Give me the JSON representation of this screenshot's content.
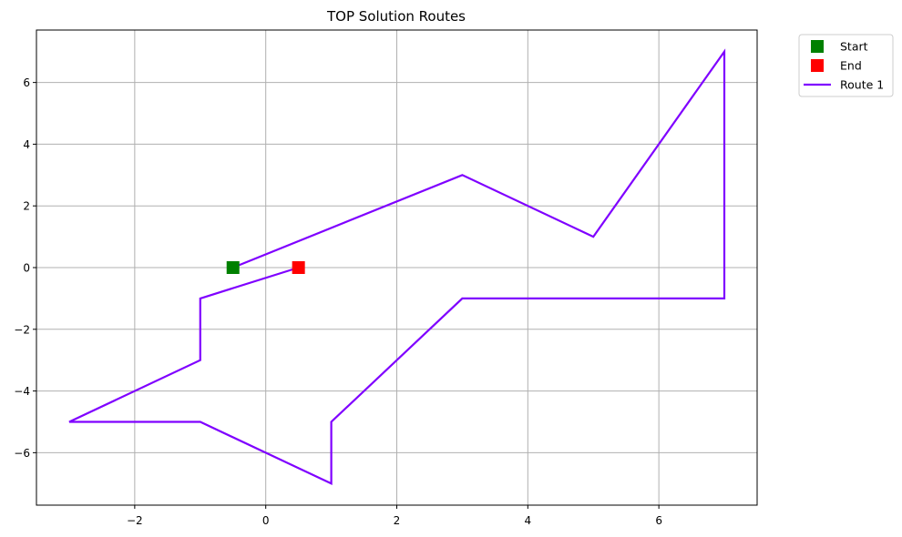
{
  "chart_data": {
    "type": "line",
    "title": "TOP Solution Routes",
    "xlabel": "",
    "ylabel": "",
    "xlim": [
      -3.5,
      7.5
    ],
    "ylim": [
      -7.7,
      7.7
    ],
    "xticks": [
      -2,
      0,
      2,
      4,
      6
    ],
    "yticks": [
      -6,
      -4,
      -2,
      0,
      2,
      4,
      6
    ],
    "xtick_labels": [
      "−2",
      "0",
      "2",
      "4",
      "6"
    ],
    "ytick_labels": [
      "−6",
      "−4",
      "−2",
      "0",
      "2",
      "4",
      "6"
    ],
    "grid": true,
    "legend_position": "outside-top-right",
    "series": [
      {
        "name": "Route 1",
        "kind": "line",
        "color": "#7f00ff",
        "points": [
          [
            -0.5,
            0
          ],
          [
            3,
            3
          ],
          [
            5,
            1
          ],
          [
            7,
            7
          ],
          [
            7,
            -1
          ],
          [
            3,
            -1
          ],
          [
            1,
            -5
          ],
          [
            1,
            -7
          ],
          [
            -1,
            -5
          ],
          [
            -3,
            -5
          ],
          [
            -1,
            -3
          ],
          [
            -1,
            -1
          ],
          [
            0.5,
            0
          ]
        ]
      }
    ],
    "markers": [
      {
        "name": "Start",
        "kind": "square",
        "color": "#008000",
        "x": -0.5,
        "y": 0
      },
      {
        "name": "End",
        "kind": "square",
        "color": "#ff0000",
        "x": 0.5,
        "y": 0
      }
    ],
    "legend": [
      {
        "label": "Start",
        "kind": "square",
        "color": "#008000"
      },
      {
        "label": "End",
        "kind": "square",
        "color": "#ff0000"
      },
      {
        "label": "Route 1",
        "kind": "line",
        "color": "#7f00ff"
      }
    ]
  }
}
